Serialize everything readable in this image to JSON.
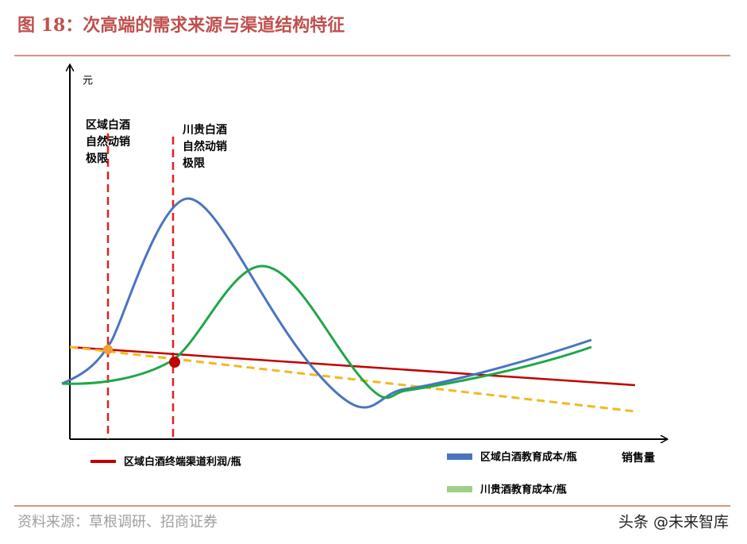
{
  "header": {
    "title": "图 18：次高端的需求来源与渠道结构特征"
  },
  "diagram": {
    "y_axis_label": "元",
    "x_axis_label": "销售量",
    "annotations": [
      {
        "lines": [
          "区域白酒",
          "自然动销",
          "极限"
        ]
      },
      {
        "lines": [
          "川贵白酒",
          "自然动销",
          "极限"
        ]
      }
    ],
    "legend": [
      {
        "label": "区域白酒终端渠道利润/瓶"
      },
      {
        "label": "区域白酒教育成本/瓶"
      },
      {
        "label": "川贵酒教育成本/瓶"
      }
    ]
  },
  "footer": {
    "source": "资料来源：草根调研、招商证券",
    "watermark": "头条 @未来智库"
  }
}
